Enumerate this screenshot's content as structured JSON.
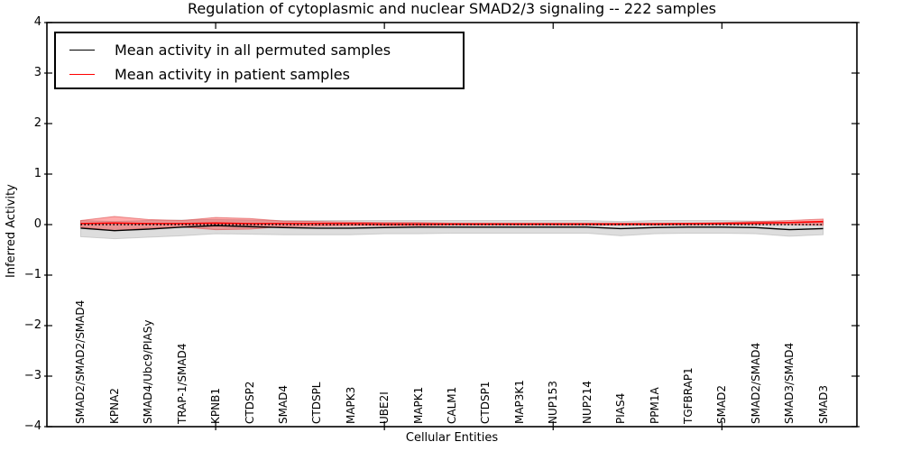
{
  "chart_data": {
    "type": "line",
    "title": "Regulation of cytoplasmic and nuclear SMAD2/3 signaling -- 222 samples",
    "xlabel": "Cellular Entities",
    "ylabel": "Inferred Activity",
    "xlim": [
      0,
      24
    ],
    "ylim": [
      -4,
      4
    ],
    "grid": false,
    "legend_position": "upper left",
    "yticks": {
      "values": [
        4,
        3,
        2,
        1,
        0,
        -1,
        -2,
        -3,
        -4
      ],
      "labels": [
        "4",
        "3",
        "2",
        "1",
        "0",
        "−1",
        "−2",
        "−3",
        "−4"
      ]
    },
    "xticks_top": [
      5,
      10,
      15,
      20
    ],
    "categories": [
      "SMAD2/SMAD2/SMAD4",
      "KPNA2",
      "SMAD4/Ubc9/PIASy",
      "TRAP-1/SMAD4",
      "KPNB1",
      "CTDSP2",
      "SMAD4",
      "CTDSPL",
      "MAPK3",
      "UBE2I",
      "MAPK1",
      "CALM1",
      "CTDSP1",
      "MAP3K1",
      "NUP153",
      "NUP214",
      "PIAS4",
      "PPM1A",
      "TGFBRAP1",
      "SMAD2",
      "SMAD2/SMAD4",
      "SMAD3/SMAD4",
      "SMAD3"
    ],
    "x": [
      1,
      2,
      3,
      4,
      5,
      6,
      7,
      8,
      9,
      10,
      11,
      12,
      13,
      14,
      15,
      16,
      17,
      18,
      19,
      20,
      21,
      22,
      23
    ],
    "series": [
      {
        "name": "Mean activity in all permuted samples",
        "color": "#000000",
        "style": "solid",
        "values": [
          -0.07,
          -0.12,
          -0.09,
          -0.05,
          -0.02,
          -0.04,
          -0.06,
          -0.07,
          -0.07,
          -0.06,
          -0.05,
          -0.05,
          -0.05,
          -0.05,
          -0.05,
          -0.05,
          -0.08,
          -0.06,
          -0.05,
          -0.05,
          -0.06,
          -0.1,
          -0.08
        ]
      },
      {
        "name": "Mean activity in patient samples",
        "color": "#ff0000",
        "style": "solid",
        "values": [
          0.02,
          0.03,
          0.02,
          0.02,
          0.03,
          0.02,
          0.02,
          0.02,
          0.02,
          0.01,
          0.01,
          0.01,
          0.01,
          0.01,
          0.01,
          0.01,
          0.01,
          0.01,
          0.02,
          0.02,
          0.03,
          0.04,
          0.06
        ]
      }
    ],
    "zero_line": {
      "y": 0,
      "color": "#000000",
      "style": "dotted"
    },
    "bands": [
      {
        "name": "permuted-std-band",
        "fill": "#808080",
        "fill_opacity": 0.27,
        "edge": "#b0b0b0",
        "upper": [
          0.08,
          0.06,
          0.08,
          0.09,
          0.1,
          0.09,
          0.08,
          0.08,
          0.08,
          0.08,
          0.08,
          0.08,
          0.08,
          0.08,
          0.08,
          0.08,
          0.06,
          0.08,
          0.08,
          0.08,
          0.07,
          0.05,
          0.05
        ],
        "lower": [
          -0.24,
          -0.28,
          -0.25,
          -0.22,
          -0.18,
          -0.19,
          -0.2,
          -0.2,
          -0.2,
          -0.18,
          -0.18,
          -0.17,
          -0.17,
          -0.17,
          -0.17,
          -0.17,
          -0.22,
          -0.18,
          -0.17,
          -0.17,
          -0.18,
          -0.23,
          -0.2
        ]
      },
      {
        "name": "patient-std-band",
        "fill": "#ff0000",
        "fill_opacity": 0.33,
        "edge": "#d84040",
        "upper": [
          0.08,
          0.16,
          0.1,
          0.08,
          0.14,
          0.12,
          0.07,
          0.06,
          0.05,
          0.04,
          0.04,
          0.03,
          0.03,
          0.03,
          0.03,
          0.03,
          0.03,
          0.03,
          0.03,
          0.04,
          0.06,
          0.08,
          0.11
        ],
        "lower": [
          -0.05,
          -0.12,
          -0.07,
          -0.05,
          -0.1,
          -0.09,
          -0.04,
          -0.03,
          -0.02,
          -0.02,
          -0.02,
          -0.01,
          -0.01,
          -0.01,
          -0.01,
          -0.01,
          -0.01,
          -0.01,
          -0.01,
          0.0,
          0.0,
          0.0,
          -0.01
        ]
      }
    ],
    "colors": {
      "axes": "#000000",
      "background": "#ffffff"
    }
  }
}
